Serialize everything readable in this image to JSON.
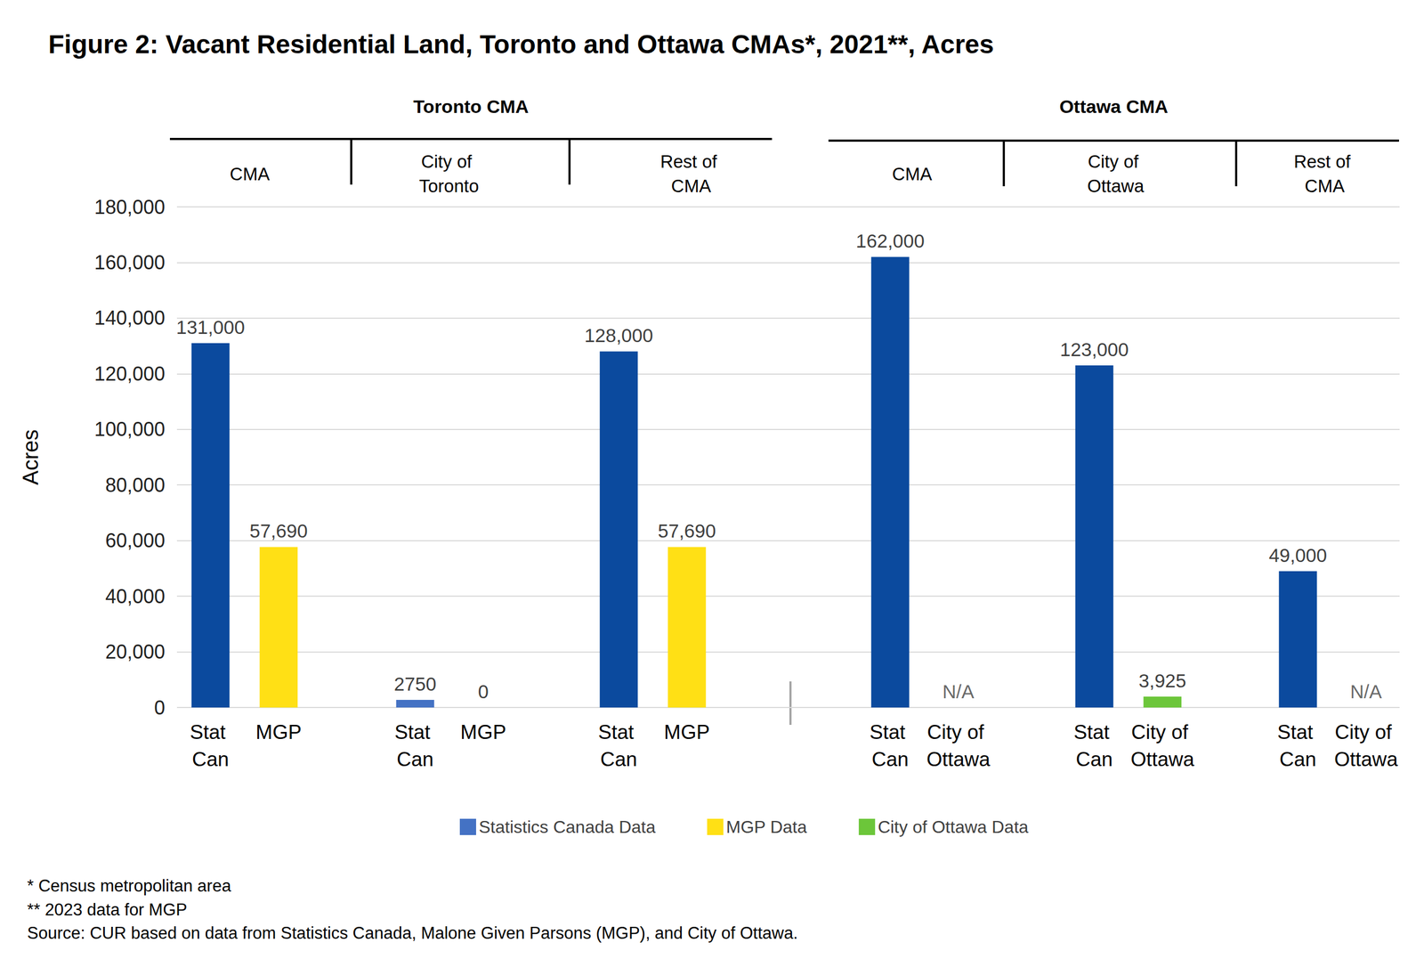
{
  "chart_data": {
    "type": "bar",
    "title": "Figure 2: Vacant Residential Land, Toronto and Ottawa CMAs*, 2021**, Acres",
    "y_label": "Acres",
    "regions": [
      {
        "name": "Toronto CMA",
        "groups": [
          "CMA",
          "City of Toronto",
          "Rest of CMA"
        ]
      },
      {
        "name": "Ottawa CMA",
        "groups": [
          "CMA",
          "City of Ottawa",
          "Rest of CMA"
        ]
      }
    ],
    "categories": [
      "Stat Can",
      "MGP",
      "Stat Can",
      "MGP",
      "Stat Can",
      "MGP",
      "Stat Can",
      "City of Ottawa",
      "Stat Can",
      "City of Ottawa",
      "Stat Can",
      "City of Ottawa"
    ],
    "series": [
      {
        "name": "Statistics Canada Data",
        "color": "#4472C4",
        "values": [
          131000,
          null,
          2750,
          null,
          128000,
          null,
          162000,
          null,
          123000,
          null,
          49000,
          null
        ],
        "value_labels": [
          "131,000",
          null,
          "2750",
          null,
          "128,000",
          null,
          "162,000",
          null,
          "123,000",
          null,
          "49,000",
          null
        ],
        "colors": [
          "#0B4A9E",
          null,
          "#4472C4",
          null,
          "#0B4A9E",
          null,
          "#0B4A9E",
          null,
          "#0B4A9E",
          null,
          "#0B4A9E",
          null
        ]
      },
      {
        "name": "MGP Data",
        "color": "#FFE015",
        "values": [
          null,
          57690,
          null,
          0,
          null,
          57690,
          null,
          null,
          null,
          null,
          null,
          null
        ],
        "value_labels": [
          null,
          "57,690",
          null,
          "0",
          null,
          "57,690",
          null,
          null,
          null,
          null,
          null,
          null
        ]
      },
      {
        "name": "City of Ottawa Data",
        "color": "#6CC63A",
        "values": [
          null,
          null,
          null,
          null,
          null,
          null,
          null,
          null,
          null,
          3925,
          null,
          null
        ],
        "value_labels": [
          null,
          null,
          null,
          null,
          null,
          null,
          null,
          "N/A",
          null,
          "3,925",
          null,
          "N/A"
        ]
      }
    ],
    "ylim": [
      0,
      180000
    ],
    "yticks": [
      0,
      {
        "value": 20000,
        "label": "20,000"
      },
      {
        "value": 40000,
        "label": "40,000"
      },
      {
        "value": 60000,
        "label": "60,000"
      },
      {
        "value": 80000,
        "label": "80,000"
      },
      {
        "value": 100000,
        "label": "100,000"
      },
      {
        "value": 120000,
        "label": "120,000"
      },
      {
        "value": 140000,
        "label": "140,000"
      },
      {
        "value": 160000,
        "label": "160,000"
      },
      {
        "value": 180000,
        "label": "180,000"
      }
    ],
    "grid": true,
    "data_labels": true,
    "legend": "bottom",
    "notes": [
      "* Census metropolitan area",
      "** 2023 data for MGP",
      "Source: CUR based on data from Statistics Canada, Malone Given Parsons (MGP), and City of Ottawa."
    ]
  }
}
